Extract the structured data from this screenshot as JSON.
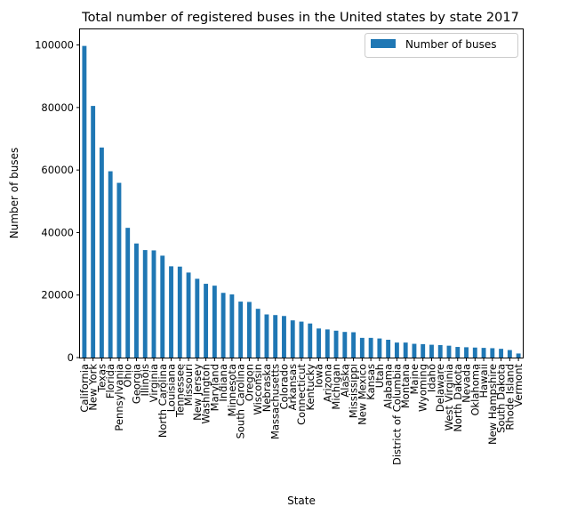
{
  "chart_data": {
    "type": "bar",
    "title": "Total number of registered buses in the United states by state 2017",
    "xlabel": "State",
    "ylabel": "Number of buses",
    "ylim": [
      0,
      105000
    ],
    "yticks": [
      0,
      20000,
      40000,
      60000,
      80000,
      100000
    ],
    "grid": false,
    "legend_position": "top-right",
    "bar_color": "#1f77b4",
    "categories": [
      "California",
      "New York",
      "Texas",
      "Florida",
      "Pennsylvania",
      "Ohio",
      "Georgia",
      "Illinois",
      "Virginia",
      "North Carolina",
      "Louisiana",
      "Tennessee",
      "Missouri",
      "New Jersey",
      "Washington",
      "Maryland",
      "Indiana",
      "Minnesota",
      "South Carolina",
      "Oregon",
      "Wisconsin",
      "Nebraska",
      "Massachusetts",
      "Colorado",
      "Arkansas",
      "Connecticut",
      "Kentucky",
      "Iowa",
      "Arizona",
      "Michigan",
      "Alaska",
      "Mississippi",
      "New Mexico",
      "Kansas",
      "Utah",
      "Alabama",
      "District of Columbia",
      "Montana",
      "Maine",
      "Wyoming",
      "Idaho",
      "Delaware",
      "West Virginia",
      "North Dakota",
      "Nevada",
      "Oklahoma",
      "Hawaii",
      "New Hampshire",
      "South Dakota",
      "Rhode Island",
      "Vermont"
    ],
    "series": [
      {
        "name": "Number of buses",
        "values": [
          99700,
          80500,
          67200,
          59600,
          55900,
          41500,
          36500,
          34400,
          34300,
          32600,
          29200,
          29100,
          27200,
          25200,
          23600,
          23000,
          20700,
          20200,
          17900,
          17800,
          15600,
          13800,
          13600,
          13300,
          11900,
          11500,
          10900,
          9300,
          9000,
          8600,
          8200,
          8100,
          6300,
          6300,
          6100,
          5700,
          4800,
          4800,
          4400,
          4300,
          4100,
          4000,
          3800,
          3400,
          3300,
          3200,
          3100,
          3000,
          2800,
          2400,
          1300
        ]
      }
    ]
  }
}
